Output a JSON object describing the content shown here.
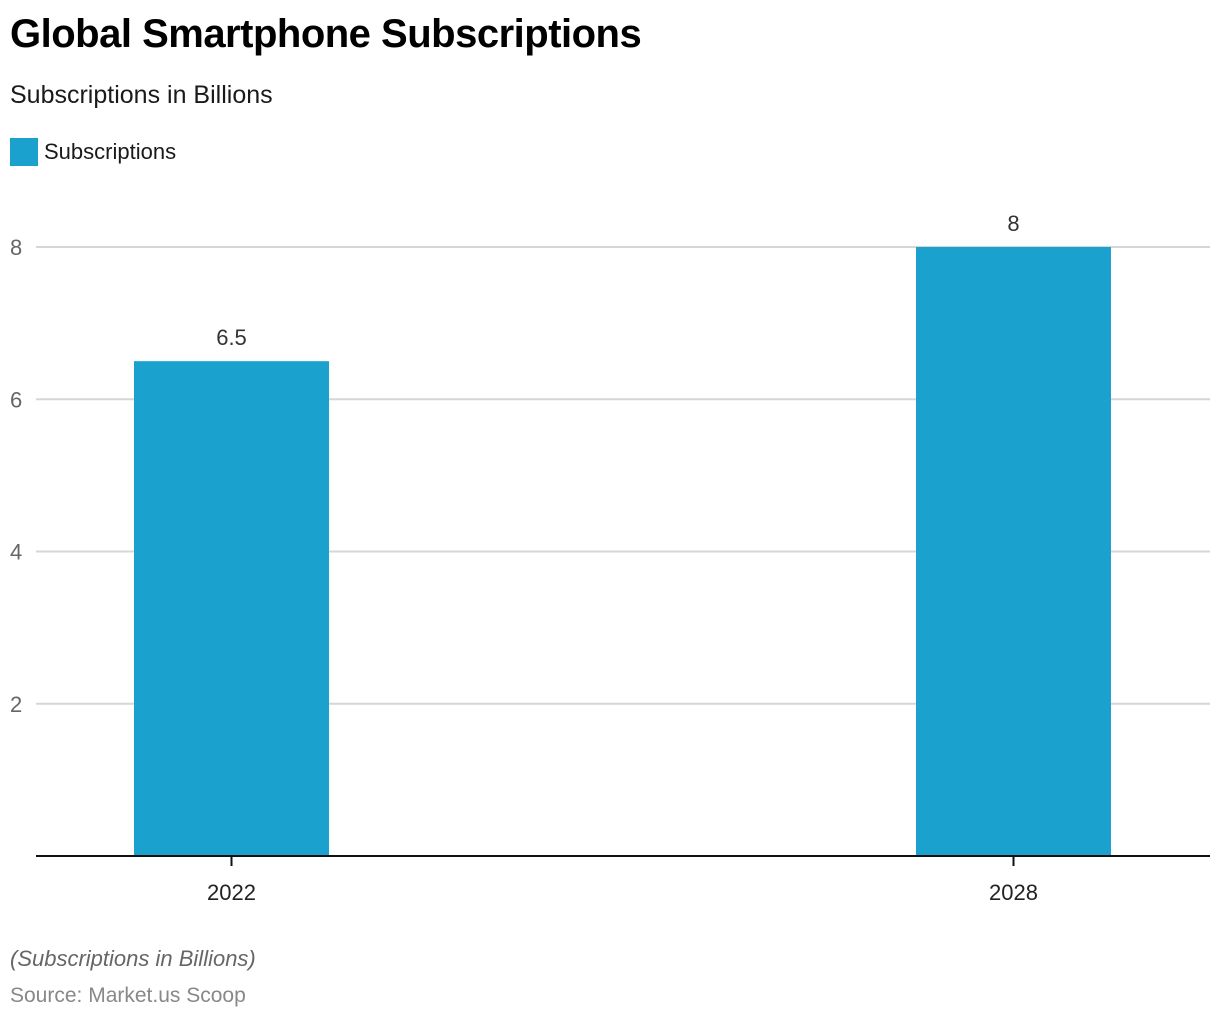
{
  "chart_data": {
    "type": "bar",
    "title": "Global Smartphone Subscriptions",
    "subtitle": "Subscriptions in Billions",
    "categories": [
      "2022",
      "2028"
    ],
    "series": [
      {
        "name": "Subscriptions",
        "values": [
          6.5,
          8
        ],
        "color": "#1aa1cd"
      }
    ],
    "data_labels": [
      "6.5",
      "8"
    ],
    "xlabel": "",
    "ylabel": "",
    "ylim": [
      0,
      8
    ],
    "yticks": [
      2,
      4,
      6,
      8
    ],
    "grid": true,
    "legend": "top-left",
    "note": "(Subscriptions in Billions)",
    "source": "Source: Market.us Scoop"
  }
}
